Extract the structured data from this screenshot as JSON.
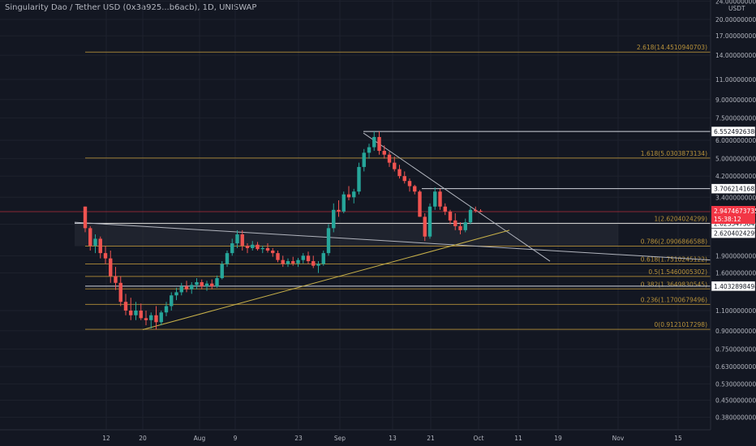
{
  "chart_data": {
    "type": "candlestick",
    "title": "Singularity Dao / Tether USD (0x3a925...b6acb), 1D, UNISWAP",
    "y_unit_label": "USDT",
    "y_scale": "log",
    "ylim": [
      0.33,
      24.0
    ],
    "y_ticks": [
      "24.0000000000",
      "20.0000000000",
      "17.0000000000",
      "14.0000000000",
      "11.0000000000",
      "9.0000000000",
      "7.5000000000",
      "6.0000000000",
      "5.0000000000",
      "4.2000000000",
      "3.4000000000",
      "2.6000000000",
      "1.9000000000",
      "1.6000000000",
      "1.1000000000",
      "0.9000000000",
      "0.7500000000",
      "0.6300000000",
      "0.5300000000",
      "0.4500000000",
      "0.3800000000"
    ],
    "x_ticks": [
      "12",
      "20",
      "Aug",
      "9",
      "23",
      "Sep",
      "13",
      "21",
      "Oct",
      "11",
      "19",
      "Nov",
      "15"
    ],
    "grid": true,
    "candles": [
      [
        3.1,
        3.1,
        2.4,
        2.5
      ],
      [
        2.5,
        2.55,
        2.0,
        2.1
      ],
      [
        2.1,
        2.35,
        1.95,
        2.25
      ],
      [
        2.25,
        2.3,
        1.85,
        1.95
      ],
      [
        1.95,
        2.1,
        1.75,
        1.85
      ],
      [
        1.85,
        2.0,
        1.45,
        1.55
      ],
      [
        1.55,
        1.7,
        1.35,
        1.45
      ],
      [
        1.45,
        1.55,
        1.15,
        1.2
      ],
      [
        1.2,
        1.3,
        1.05,
        1.1
      ],
      [
        1.1,
        1.25,
        1.0,
        1.05
      ],
      [
        1.05,
        1.2,
        1.0,
        1.1
      ],
      [
        1.1,
        1.18,
        1.0,
        1.02
      ],
      [
        1.02,
        1.1,
        0.95,
        1.0
      ],
      [
        1.0,
        1.08,
        0.92,
        1.05
      ],
      [
        1.05,
        1.15,
        0.91,
        0.98
      ],
      [
        0.98,
        1.1,
        0.95,
        1.08
      ],
      [
        1.08,
        1.2,
        1.04,
        1.15
      ],
      [
        1.15,
        1.32,
        1.1,
        1.28
      ],
      [
        1.28,
        1.38,
        1.22,
        1.32
      ],
      [
        1.32,
        1.45,
        1.28,
        1.4
      ],
      [
        1.4,
        1.48,
        1.32,
        1.36
      ],
      [
        1.36,
        1.46,
        1.3,
        1.42
      ],
      [
        1.42,
        1.52,
        1.36,
        1.46
      ],
      [
        1.46,
        1.5,
        1.36,
        1.4
      ],
      [
        1.4,
        1.48,
        1.34,
        1.44
      ],
      [
        1.44,
        1.5,
        1.36,
        1.4
      ],
      [
        1.4,
        1.56,
        1.38,
        1.52
      ],
      [
        1.52,
        1.8,
        1.5,
        1.75
      ],
      [
        1.75,
        2.0,
        1.7,
        1.95
      ],
      [
        1.95,
        2.25,
        1.9,
        2.15
      ],
      [
        2.15,
        2.45,
        2.05,
        2.35
      ],
      [
        2.35,
        2.45,
        2.0,
        2.1
      ],
      [
        2.1,
        2.15,
        1.95,
        2.05
      ],
      [
        2.05,
        2.2,
        2.0,
        2.12
      ],
      [
        2.12,
        2.18,
        2.0,
        2.03
      ],
      [
        2.03,
        2.1,
        1.95,
        2.05
      ],
      [
        2.05,
        2.15,
        1.96,
        2.0
      ],
      [
        2.0,
        2.05,
        1.88,
        1.95
      ],
      [
        1.95,
        2.0,
        1.78,
        1.82
      ],
      [
        1.82,
        1.9,
        1.7,
        1.75
      ],
      [
        1.75,
        1.85,
        1.7,
        1.8
      ],
      [
        1.8,
        1.88,
        1.72,
        1.76
      ],
      [
        1.76,
        1.86,
        1.7,
        1.82
      ],
      [
        1.82,
        1.95,
        1.76,
        1.9
      ],
      [
        1.9,
        1.98,
        1.75,
        1.8
      ],
      [
        1.8,
        1.9,
        1.68,
        1.72
      ],
      [
        1.72,
        1.8,
        1.6,
        1.75
      ],
      [
        1.75,
        2.0,
        1.72,
        1.95
      ],
      [
        1.95,
        2.6,
        1.9,
        2.5
      ],
      [
        2.5,
        3.2,
        2.4,
        3.0
      ],
      [
        3.0,
        3.3,
        2.8,
        2.95
      ],
      [
        2.95,
        3.6,
        2.9,
        3.5
      ],
      [
        3.5,
        3.8,
        3.3,
        3.4
      ],
      [
        3.4,
        3.7,
        3.2,
        3.6
      ],
      [
        3.6,
        4.8,
        3.5,
        4.6
      ],
      [
        4.6,
        5.5,
        4.4,
        5.3
      ],
      [
        5.3,
        5.8,
        5.0,
        5.6
      ],
      [
        5.6,
        6.55,
        5.4,
        6.2
      ],
      [
        6.2,
        6.55,
        5.2,
        5.4
      ],
      [
        5.4,
        5.7,
        5.0,
        5.2
      ],
      [
        5.2,
        5.35,
        4.6,
        4.8
      ],
      [
        4.8,
        5.1,
        4.4,
        4.5
      ],
      [
        4.5,
        4.7,
        4.1,
        4.2
      ],
      [
        4.2,
        4.4,
        3.9,
        4.0
      ],
      [
        4.0,
        4.1,
        3.6,
        3.8
      ],
      [
        3.8,
        3.85,
        3.5,
        3.6
      ],
      [
        3.6,
        3.65,
        2.8,
        2.8
      ],
      [
        2.8,
        2.9,
        2.2,
        2.3
      ],
      [
        2.3,
        3.2,
        2.25,
        3.1
      ],
      [
        3.1,
        3.75,
        3.0,
        3.6
      ],
      [
        3.6,
        3.7,
        3.0,
        3.1
      ],
      [
        3.1,
        3.2,
        2.85,
        2.95
      ],
      [
        2.95,
        3.0,
        2.6,
        2.7
      ],
      [
        2.7,
        2.9,
        2.45,
        2.55
      ],
      [
        2.55,
        2.65,
        2.35,
        2.45
      ],
      [
        2.45,
        2.75,
        2.4,
        2.65
      ],
      [
        2.65,
        3.1,
        2.6,
        3.0
      ],
      [
        3.0,
        3.1,
        2.92,
        2.97
      ],
      [
        2.97,
        3.02,
        2.93,
        2.95
      ]
    ],
    "horizontal_levels": [
      {
        "value": 6.552492638,
        "label": "6.5524926380",
        "type": "resistance"
      },
      {
        "value": 3.7062141687,
        "label": "3.7062141687",
        "type": "resistance"
      },
      {
        "value": 2.6233475843,
        "label": "2.6233475843",
        "type": "support"
      },
      {
        "value": 1.4032898494,
        "label": "1.4032898494",
        "type": "support"
      }
    ],
    "fib_levels": [
      {
        "ratio": "2.618",
        "value": "14.4510940703",
        "label": "2.618(14.4510940703)"
      },
      {
        "ratio": "1.618",
        "value": "5.0303873134",
        "label": "1.618(5.0303873134)"
      },
      {
        "ratio": "1",
        "value": "2.6204024299",
        "label": "1(2.6204024299)"
      },
      {
        "ratio": "0.786",
        "value": "2.0906866588",
        "label": "0.786(2.0906866588)"
      },
      {
        "ratio": "0.618",
        "value": "1.7510245122",
        "label": "0.618(1.7510245122)"
      },
      {
        "ratio": "0.5",
        "value": "1.5460005302",
        "label": "0.5(1.5460005302)"
      },
      {
        "ratio": "0.382",
        "value": "1.3649830545",
        "label": "0.382(1.3649830545)"
      },
      {
        "ratio": "0.236",
        "value": "1.1700679496",
        "label": "0.236(1.1700679496)"
      },
      {
        "ratio": "0",
        "value": "0.9121017298",
        "label": "0(0.9121017298)"
      }
    ],
    "price_badges": [
      {
        "value": 2.9474673735,
        "label": "2.9474673735",
        "sub": "15:38:12",
        "color": "#f23645"
      },
      {
        "value": 2.6204024299,
        "label": "2.6204024299",
        "color": "#ffffff"
      }
    ],
    "colors": {
      "up": "#26a69a",
      "down": "#ef5350",
      "fib": "#b8923a",
      "trend_up": "#c9b24a",
      "trend_down": "#b2b5be",
      "current_price": "#f23645"
    }
  }
}
